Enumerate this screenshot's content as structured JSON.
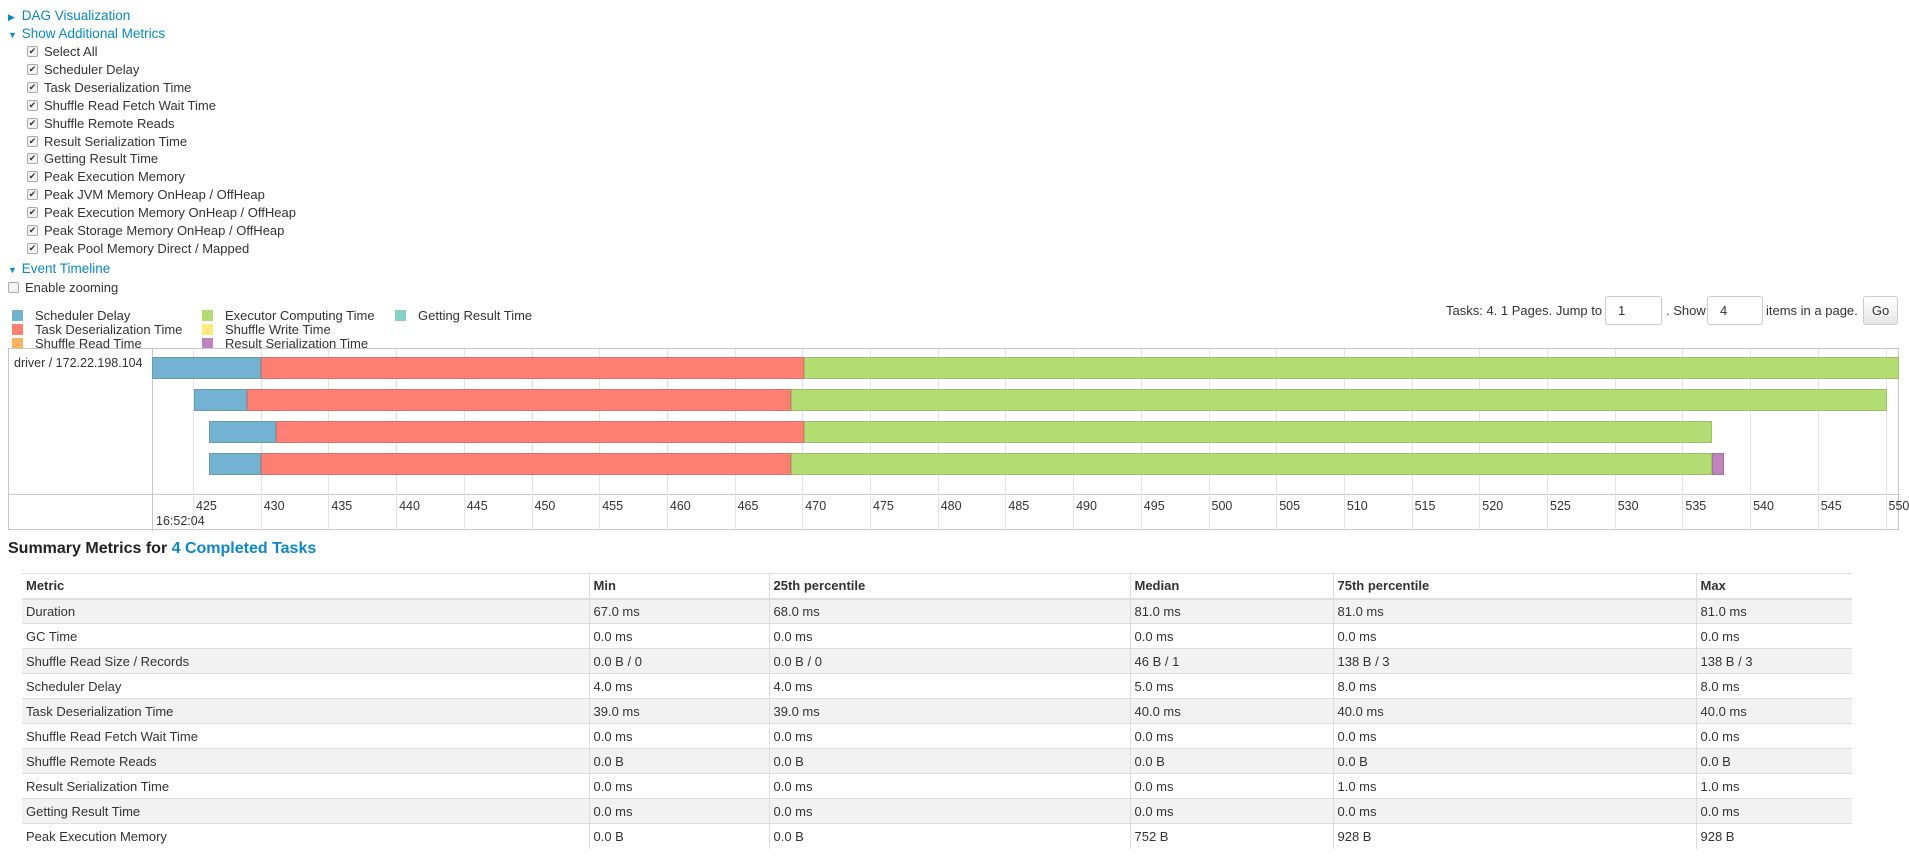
{
  "sections": {
    "dag": "DAG Visualization",
    "metrics": "Show Additional Metrics",
    "timeline": "Event Timeline"
  },
  "metric_checkboxes": [
    "Select All",
    "Scheduler Delay",
    "Task Deserialization Time",
    "Shuffle Read Fetch Wait Time",
    "Shuffle Remote Reads",
    "Result Serialization Time",
    "Getting Result Time",
    "Peak Execution Memory",
    "Peak JVM Memory OnHeap / OffHeap",
    "Peak Execution Memory OnHeap / OffHeap",
    "Peak Storage Memory OnHeap / OffHeap",
    "Peak Pool Memory Direct / Mapped"
  ],
  "enable_zooming": "Enable zooming",
  "legend": [
    {
      "label": "Scheduler Delay",
      "color": "#74b2d1"
    },
    {
      "label": "Task Deserialization Time",
      "color": "#ff7f73"
    },
    {
      "label": "Shuffle Read Time",
      "color": "#fdb462"
    },
    {
      "label": "Executor Computing Time",
      "color": "#b3dc72"
    },
    {
      "label": "Shuffle Write Time",
      "color": "#ffe97a"
    },
    {
      "label": "Result Serialization Time",
      "color": "#c083bf"
    },
    {
      "label": "Getting Result Time",
      "color": "#85d3c7"
    }
  ],
  "pagination": {
    "tasks_text": "Tasks: 4. 1 Pages. Jump to",
    "page": "1",
    "show_text": ". Show",
    "page_size": "4",
    "items_text": "items in a page.",
    "go": "Go"
  },
  "chart_data": {
    "type": "timeline",
    "group_label": "driver / 172.22.198.104",
    "x_ticks": [
      425,
      430,
      435,
      440,
      445,
      450,
      455,
      460,
      465,
      470,
      475,
      480,
      485,
      490,
      495,
      500,
      505,
      510,
      515,
      520,
      525,
      530,
      535,
      540,
      545,
      550
    ],
    "x_date_label": "16:52:04",
    "xlim": [
      422,
      551
    ],
    "tasks": [
      {
        "segments": [
          {
            "phase": "Scheduler Delay",
            "start": 422,
            "end": 430
          },
          {
            "phase": "Task Deserialization Time",
            "start": 430,
            "end": 470.1
          },
          {
            "phase": "Executor Computing Time",
            "start": 470.1,
            "end": 551
          }
        ]
      },
      {
        "segments": [
          {
            "phase": "Scheduler Delay",
            "start": 425.1,
            "end": 429
          },
          {
            "phase": "Task Deserialization Time",
            "start": 429,
            "end": 469.2
          },
          {
            "phase": "Executor Computing Time",
            "start": 469.2,
            "end": 550.1
          }
        ]
      },
      {
        "segments": [
          {
            "phase": "Scheduler Delay",
            "start": 426.2,
            "end": 431.1
          },
          {
            "phase": "Task Deserialization Time",
            "start": 431.1,
            "end": 470.1
          },
          {
            "phase": "Executor Computing Time",
            "start": 470.1,
            "end": 537.2
          }
        ]
      },
      {
        "segments": [
          {
            "phase": "Scheduler Delay",
            "start": 426.2,
            "end": 430
          },
          {
            "phase": "Task Deserialization Time",
            "start": 430,
            "end": 469.2
          },
          {
            "phase": "Executor Computing Time",
            "start": 469.2,
            "end": 537.2
          },
          {
            "phase": "Result Serialization Time",
            "start": 537.2,
            "end": 538.1
          }
        ]
      }
    ]
  },
  "summary": {
    "prefix": "Summary Metrics for ",
    "link": "4 Completed Tasks"
  },
  "table": {
    "headers": [
      "Metric",
      "Min",
      "25th percentile",
      "Median",
      "75th percentile",
      "Max"
    ],
    "rows": [
      [
        "Duration",
        "67.0 ms",
        "68.0 ms",
        "81.0 ms",
        "81.0 ms",
        "81.0 ms"
      ],
      [
        "GC Time",
        "0.0 ms",
        "0.0 ms",
        "0.0 ms",
        "0.0 ms",
        "0.0 ms"
      ],
      [
        "Shuffle Read Size / Records",
        "0.0 B / 0",
        "0.0 B / 0",
        "46 B / 1",
        "138 B / 3",
        "138 B / 3"
      ],
      [
        "Scheduler Delay",
        "4.0 ms",
        "4.0 ms",
        "5.0 ms",
        "8.0 ms",
        "8.0 ms"
      ],
      [
        "Task Deserialization Time",
        "39.0 ms",
        "39.0 ms",
        "40.0 ms",
        "40.0 ms",
        "40.0 ms"
      ],
      [
        "Shuffle Read Fetch Wait Time",
        "0.0 ms",
        "0.0 ms",
        "0.0 ms",
        "0.0 ms",
        "0.0 ms"
      ],
      [
        "Shuffle Remote Reads",
        "0.0 B",
        "0.0 B",
        "0.0 B",
        "0.0 B",
        "0.0 B"
      ],
      [
        "Result Serialization Time",
        "0.0 ms",
        "0.0 ms",
        "0.0 ms",
        "1.0 ms",
        "1.0 ms"
      ],
      [
        "Getting Result Time",
        "0.0 ms",
        "0.0 ms",
        "0.0 ms",
        "0.0 ms",
        "0.0 ms"
      ],
      [
        "Peak Execution Memory",
        "0.0 B",
        "0.0 B",
        "752 B",
        "928 B",
        "928 B"
      ]
    ]
  }
}
